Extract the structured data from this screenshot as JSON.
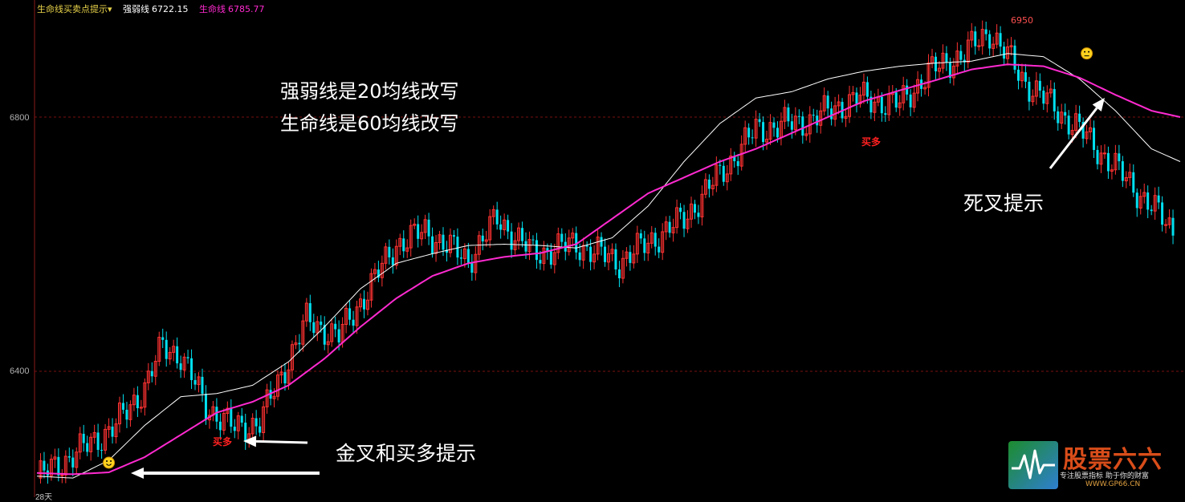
{
  "header": {
    "indicator_name": "生命线买卖点提示",
    "indicator_chevron": "▾",
    "ma20_label": "强弱线",
    "ma20_value": "6722.15",
    "ma60_label": "生命线",
    "ma60_value": "6785.77"
  },
  "y_axis": {
    "ticks": [
      "6800",
      "6400"
    ]
  },
  "bottom_label": "28天",
  "annotations": {
    "line1": "强弱线是20均线改写",
    "line2": "生命线是60均线改写",
    "death_cross": "死叉提示",
    "golden_cross": "金叉和买多提示"
  },
  "chart_labels": {
    "peak": "6950",
    "buy1": "买多",
    "buy2": "买多"
  },
  "logo": {
    "title": "股票六六",
    "subtitle": "专注股票指标 助于你的财富",
    "url": "WWW.GP66.CN"
  },
  "colors": {
    "up": "#ff3232",
    "down": "#00e0f0",
    "ma20": "#ffffff",
    "ma60": "#ff2ad0",
    "grid": "#7a1010",
    "axis": "#8b1a1a",
    "header_ma20": "#ffffff",
    "header_ma60": "#ff2ad0",
    "header_name": "#e8d24a"
  },
  "chart_data": {
    "type": "line",
    "x_unit": "bar index",
    "ylim": [
      6210,
      6960
    ],
    "grid": true,
    "series": [
      {
        "name": "强弱线",
        "x": [
          0,
          10,
          20,
          30,
          40,
          50,
          60,
          70,
          80,
          90,
          100,
          110,
          120,
          130,
          140,
          150,
          160,
          170,
          180,
          190,
          200,
          210,
          220,
          230,
          240,
          250,
          260,
          270,
          280,
          290,
          300,
          310,
          318
        ],
        "values": [
          6235,
          6232,
          6260,
          6315,
          6360,
          6365,
          6378,
          6415,
          6470,
          6530,
          6570,
          6585,
          6598,
          6600,
          6598,
          6594,
          6610,
          6660,
          6730,
          6790,
          6830,
          6840,
          6860,
          6872,
          6880,
          6885,
          6888,
          6900,
          6895,
          6860,
          6810,
          6750,
          6730
        ]
      },
      {
        "name": "生命线",
        "x": [
          0,
          10,
          20,
          30,
          40,
          50,
          60,
          70,
          80,
          90,
          100,
          110,
          120,
          130,
          140,
          150,
          160,
          170,
          180,
          190,
          200,
          210,
          220,
          230,
          240,
          250,
          260,
          270,
          280,
          290,
          300,
          310,
          318
        ],
        "values": [
          6240,
          6238,
          6241,
          6265,
          6300,
          6335,
          6352,
          6378,
          6420,
          6470,
          6515,
          6550,
          6570,
          6580,
          6586,
          6600,
          6640,
          6680,
          6705,
          6730,
          6750,
          6775,
          6800,
          6825,
          6842,
          6858,
          6875,
          6883,
          6880,
          6862,
          6835,
          6810,
          6800
        ]
      }
    ],
    "markers": [
      {
        "type": "golden-cross",
        "x": 20,
        "y": 6241
      },
      {
        "type": "buy",
        "x": 57,
        "y": 6286,
        "label": "买多"
      },
      {
        "type": "buy",
        "x": 231,
        "y": 6740,
        "label": "买多"
      },
      {
        "type": "death-cross",
        "x": 292,
        "y": 6885
      },
      {
        "type": "peak",
        "x": 263,
        "y": 6950,
        "label": "6950"
      }
    ]
  }
}
